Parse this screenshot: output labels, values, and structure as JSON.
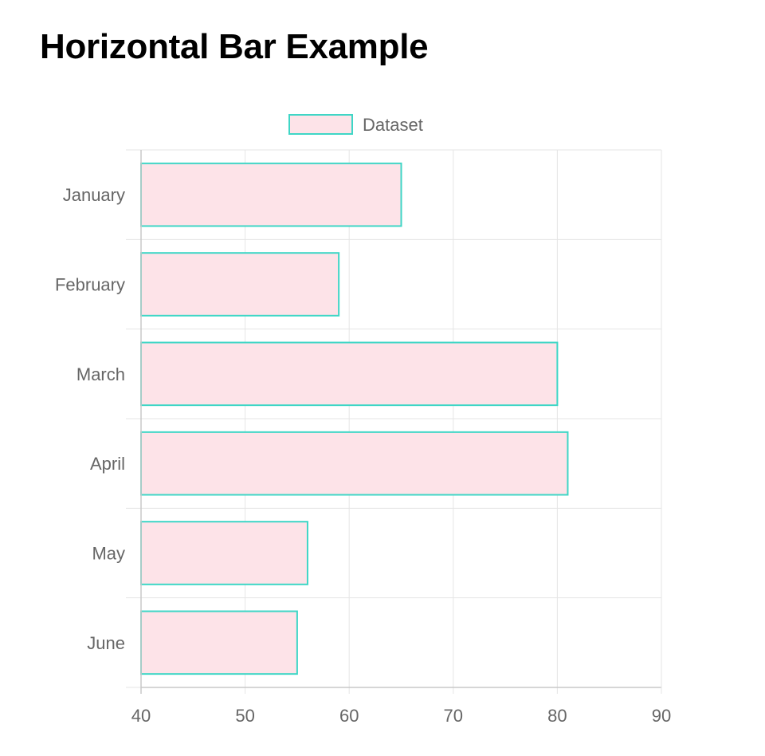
{
  "page": {
    "title": "Horizontal Bar Example"
  },
  "chart_data": {
    "type": "bar",
    "orientation": "horizontal",
    "categories": [
      "January",
      "February",
      "March",
      "April",
      "May",
      "June"
    ],
    "series": [
      {
        "name": "Dataset",
        "values": [
          65,
          59,
          80,
          81,
          56,
          55
        ],
        "fill_color": "#fde3e8",
        "border_color": "#3fd6c6"
      }
    ],
    "title": "",
    "xlabel": "",
    "ylabel": "",
    "xlim": [
      40,
      90
    ],
    "x_ticks": [
      "40",
      "50",
      "60",
      "70",
      "80",
      "90"
    ],
    "grid": true,
    "legend": "top-center",
    "grid_color": "#e5e5e5",
    "axis_color": "#c8c8c8",
    "tick_label_color": "#666666"
  }
}
